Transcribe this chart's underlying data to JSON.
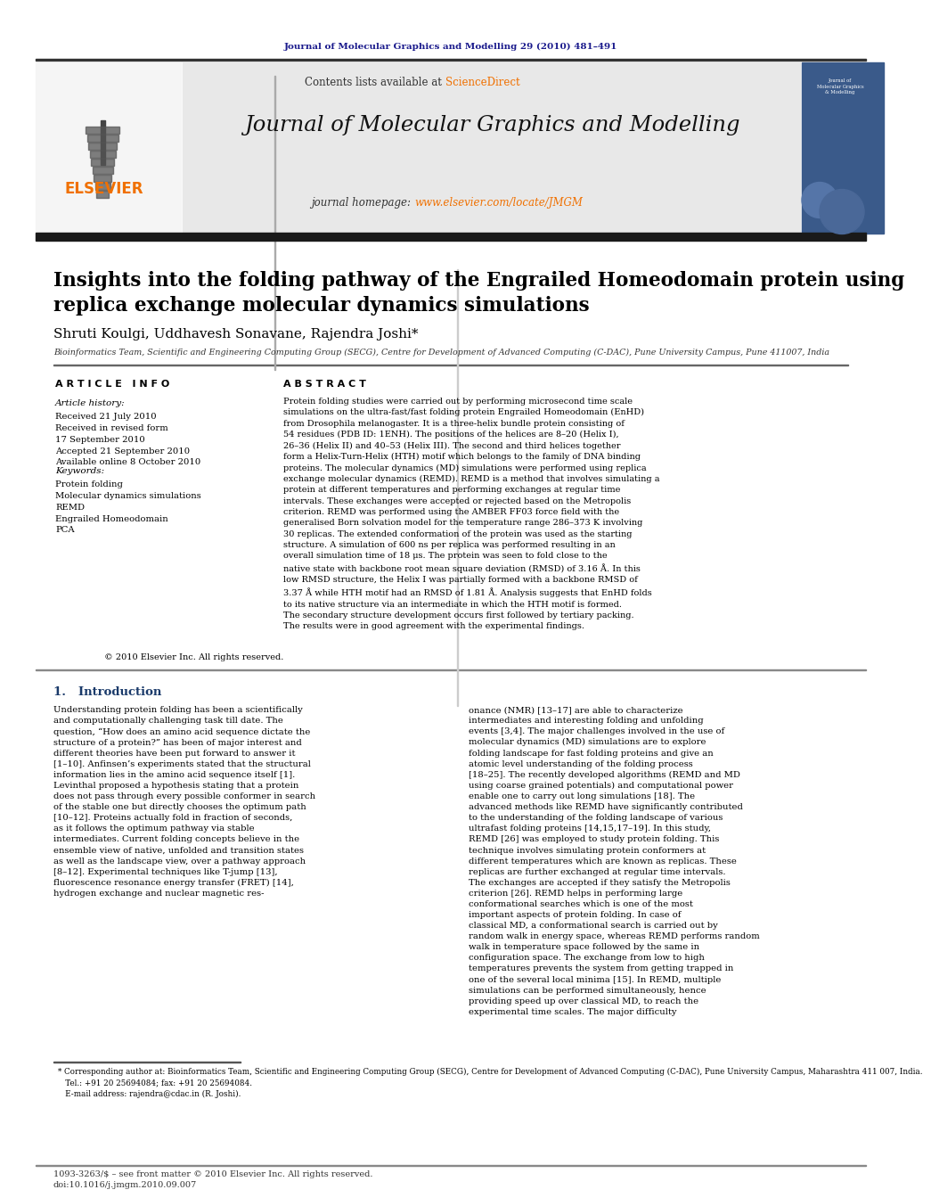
{
  "page_bg": "#ffffff",
  "top_journal_ref": "Journal of Molecular Graphics and Modelling 29 (2010) 481–491",
  "top_journal_ref_color": "#1a1a8c",
  "header_bg": "#e8e8e8",
  "header_contents_text": "Contents lists available at ",
  "header_sciencedirect": "ScienceDirect",
  "header_sciencedirect_color": "#f07000",
  "header_journal_title": "Journal of Molecular Graphics and Modelling",
  "header_homepage_text": "journal homepage: ",
  "header_homepage_url": "www.elsevier.com/locate/JMGM",
  "header_url_color": "#f07000",
  "elsevier_color": "#f07000",
  "elsevier_text": "ELSEVIER",
  "paper_title": "Insights into the folding pathway of the Engrailed Homeodomain protein using\nreplica exchange molecular dynamics simulations",
  "authors": "Shruti Koulgi, Uddhavesh Sonavane, Rajendra Joshi*",
  "affiliation": "Bioinformatics Team, Scientific and Engineering Computing Group (SECG), Centre for Development of Advanced Computing (C-DAC), Pune University Campus, Pune 411007, India",
  "article_info_title": "A R T I C L E   I N F O",
  "abstract_title": "A B S T R A C T",
  "article_history_title": "Article history:",
  "article_history": "Received 21 July 2010\nReceived in revised form\n17 September 2010\nAccepted 21 September 2010\nAvailable online 8 October 2010",
  "keywords_title": "Keywords:",
  "keywords": "Protein folding\nMolecular dynamics simulations\nREMD\nEngrailed Homeodomain\nPCA",
  "abstract_text": "Protein folding studies were carried out by performing microsecond time scale simulations on the ultra-fast/fast folding protein Engrailed Homeodomain (EnHD) from Drosophila melanogaster. It is a three-helix bundle protein consisting of 54 residues (PDB ID: 1ENH). The positions of the helices are 8–20 (Helix I), 26–36 (Helix II) and 40–53 (Helix III). The second and third helices together form a Helix-Turn-Helix (HTH) motif which belongs to the family of DNA binding proteins. The molecular dynamics (MD) simulations were performed using replica exchange molecular dynamics (REMD). REMD is a method that involves simulating a protein at different temperatures and performing exchanges at regular time intervals. These exchanges were accepted or rejected based on the Metropolis criterion. REMD was performed using the AMBER FF03 force field with the generalised Born solvation model for the temperature range 286–373 K involving 30 replicas. The extended conformation of the protein was used as the starting structure. A simulation of 600 ns per replica was performed resulting in an overall simulation time of 18 μs. The protein was seen to fold close to the native state with backbone root mean square deviation (RMSD) of 3.16 Å. In this low RMSD structure, the Helix I was partially formed with a backbone RMSD of 3.37 Å while HTH motif had an RMSD of 1.81 Å. Analysis suggests that EnHD folds to its native structure via an intermediate in which the HTH motif is formed. The secondary structure development occurs first followed by tertiary packing. The results were in good agreement with the experimental findings.",
  "copyright_text": "© 2010 Elsevier Inc. All rights reserved.",
  "section1_title": "1.   Introduction",
  "section1_col1": "Understanding protein folding has been a scientifically and computationally challenging task till date. The question, “How does an amino acid sequence dictate the structure of a protein?” has been of major interest and different theories have been put forward to answer it [1–10]. Anfinsen’s experiments stated that the structural information lies in the amino acid sequence itself [1]. Levinthal proposed a hypothesis stating that a protein does not pass through every possible conformer in search of the stable one but directly chooses the optimum path [10–12]. Proteins actually fold in fraction of seconds, as it follows the optimum pathway via stable intermediates. Current folding concepts believe in the ensemble view of native, unfolded and transition states as well as the landscape view, over a pathway approach [8–12]. Experimental techniques like T-jump [13], fluorescence resonance energy transfer (FRET) [14], hydrogen exchange and nuclear magnetic res-",
  "section1_col2": "onance (NMR) [13–17] are able to characterize intermediates and interesting folding and unfolding events [3,4]. The major challenges involved in the use of molecular dynamics (MD) simulations are to explore folding landscape for fast folding proteins and give an atomic level understanding of the folding process [18–25]. The recently developed algorithms (REMD and MD using coarse grained potentials) and computational power enable one to carry out long simulations [18]. The advanced methods like REMD have significantly contributed to the understanding of the folding landscape of various ultrafast folding proteins [14,15,17–19].\n    In this study, REMD [26] was employed to study protein folding. This technique involves simulating protein conformers at different temperatures which are known as replicas. These replicas are further exchanged at regular time intervals. The exchanges are accepted if they satisfy the Metropolis criterion [26]. REMD helps in performing large conformational searches which is one of the most important aspects of protein folding. In case of classical MD, a conformational search is carried out by random walk in energy space, whereas REMD performs random walk in temperature space followed by the same in configuration space. The exchange from low to high temperatures prevents the system from getting trapped in one of the several local minima [15]. In REMD, multiple simulations can be performed simultaneously, hence providing speed up over classical MD, to reach the experimental time scales. The major difficulty",
  "footnote_text": "* Corresponding author at: Bioinformatics Team, Scientific and Engineering Computing Group (SECG), Centre for Development of Advanced Computing (C-DAC), Pune University Campus, Maharashtra 411 007, India.\n   Tel.: +91 20 25694084; fax: +91 20 25694084.\n   E-mail address: rajendra@cdac.in (R. Joshi).",
  "footer_text": "1093-3263/$ – see front matter © 2010 Elsevier Inc. All rights reserved.\ndoi:10.1016/j.jmgm.2010.09.007"
}
